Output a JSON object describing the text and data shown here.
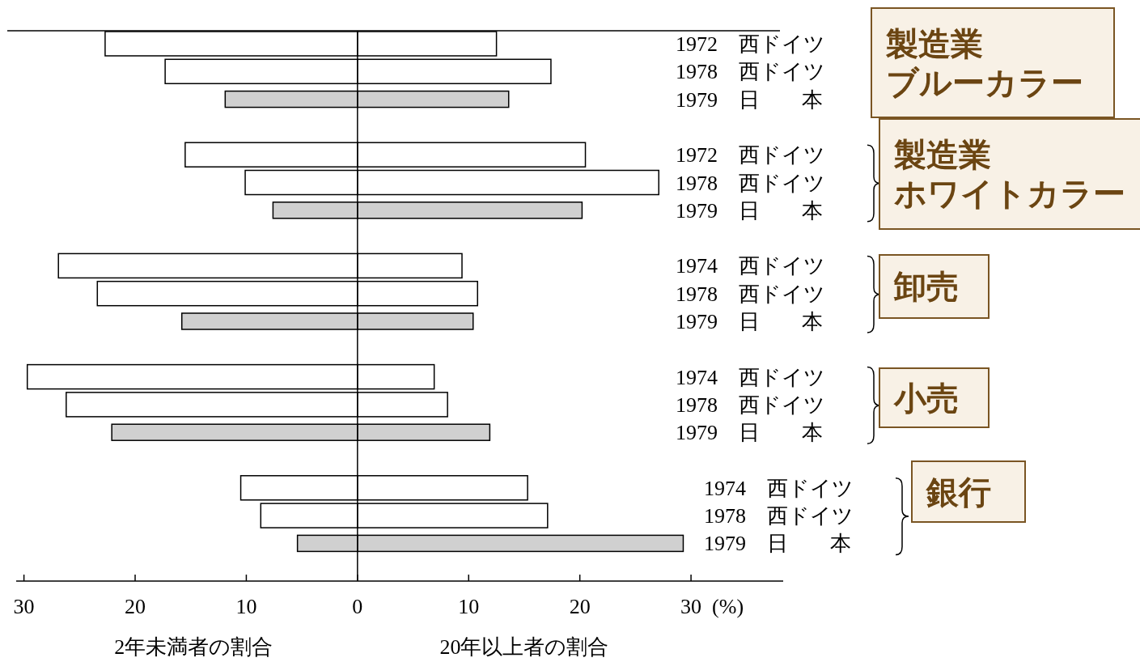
{
  "chart_data": {
    "type": "bar",
    "orientation": "horizontal",
    "stacked": true,
    "xlabel": "(%)",
    "categories": [
      "1972　西ドイツ",
      "1978　西ドイツ",
      "1979　日　　本",
      "1972　西ドイツ",
      "1978　西ドイツ",
      "1979　日　　本",
      "1974　西ドイツ",
      "1978　西ドイツ",
      "1979　日　　本",
      "1974　西ドイツ",
      "1978　西ドイツ",
      "1979　日　　本",
      "1974　西ドイツ",
      "1978　西ドイツ",
      "1979　日　　本"
    ],
    "series": [
      {
        "colors": [
          "#ffffff",
          "#ffffff",
          "#d0d0d0",
          "#ffffff",
          "#ffffff",
          "#d0d0d0",
          "#ffffff",
          "#ffffff",
          "#d0d0d0",
          "#ffffff",
          "#ffffff",
          "#d0d0d0",
          "#ffffff",
          "#ffffff",
          "#d0d0d0"
        ],
        "values": [
          -22.7,
          -17.3,
          -11.9,
          -15.5,
          -10.1,
          -7.6,
          -26.9,
          -23.4,
          -15.8,
          -29.7,
          -26.2,
          -22.1,
          -10.5,
          -8.7,
          -5.4
        ]
      },
      {
        "colors": [
          "#ffffff",
          "#ffffff",
          "#d0d0d0",
          "#ffffff",
          "#ffffff",
          "#d0d0d0",
          "#ffffff",
          "#ffffff",
          "#d0d0d0",
          "#ffffff",
          "#ffffff",
          "#d0d0d0",
          "#ffffff",
          "#ffffff",
          "#d0d0d0"
        ],
        "values": [
          12.5,
          17.4,
          13.6,
          20.5,
          27.1,
          20.2,
          9.4,
          10.8,
          10.4,
          6.9,
          8.1,
          11.9,
          15.3,
          17.1,
          29.3
        ]
      }
    ],
    "xlim": [
      -31.5,
      38
    ],
    "xticks": [
      {
        "value": -30,
        "label": "30"
      },
      {
        "value": -20,
        "label": "20"
      },
      {
        "value": -10,
        "label": "10"
      },
      0,
      10,
      20,
      30
    ],
    "ref_lines": [
      {
        "axis": "x",
        "value": 0,
        "color": "#000000"
      }
    ],
    "annotations": [
      "製造業ブルーカラー",
      "製造業ホワイトカラー",
      "卸売",
      "小売",
      "銀行",
      "2年未満者の割合",
      "20年以上者の割合"
    ]
  }
}
